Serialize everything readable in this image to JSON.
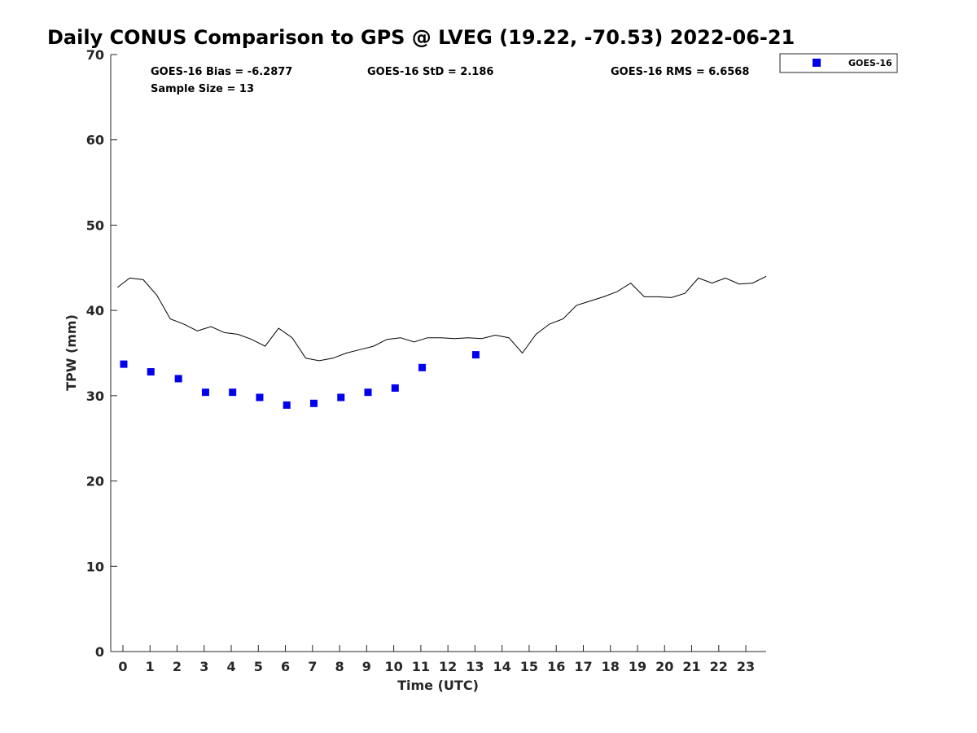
{
  "chart_data": {
    "type": "scatter",
    "title": "Daily CONUS Comparison to GPS @ LVEG (19.22, -70.53) 2022-06-21",
    "xlabel": "Time (UTC)",
    "ylabel": "TPW (mm)",
    "xlim": [
      -0.45,
      23.75
    ],
    "ylim": [
      0,
      70
    ],
    "x_ticks": [
      0,
      1,
      2,
      3,
      4,
      5,
      6,
      7,
      8,
      9,
      10,
      11,
      12,
      13,
      14,
      15,
      16,
      17,
      18,
      19,
      20,
      21,
      22,
      23
    ],
    "y_ticks": [
      0,
      10,
      20,
      30,
      40,
      50,
      60,
      70
    ],
    "grid": false,
    "legend_position": "outside-top-right",
    "stats": {
      "bias": "GOES-16 Bias = -6.2877",
      "std": "GOES-16 StD = 2.186",
      "rms": "GOES-16 RMS = 6.6568",
      "sample_size": "Sample Size = 13"
    },
    "series": [
      {
        "name": "GOES-16",
        "kind": "scatter",
        "marker": "square",
        "color": "#0000ee",
        "x": [
          0.03,
          1.03,
          2.05,
          3.05,
          4.05,
          5.05,
          6.05,
          7.05,
          8.05,
          9.05,
          10.05,
          11.05,
          13.03
        ],
        "y": [
          33.7,
          32.8,
          32.0,
          30.4,
          30.4,
          29.8,
          28.9,
          29.1,
          29.8,
          30.4,
          30.9,
          33.3,
          34.8
        ]
      },
      {
        "kind": "line",
        "color": "#000000",
        "x": [
          -0.2,
          0.25,
          0.75,
          1.25,
          1.75,
          2.25,
          2.75,
          3.25,
          3.75,
          4.25,
          4.75,
          5.25,
          5.75,
          6.25,
          6.75,
          7.25,
          7.75,
          8.25,
          8.75,
          9.25,
          9.75,
          10.25,
          10.75,
          11.25,
          11.75,
          12.25,
          12.75,
          13.25,
          13.75,
          14.25,
          14.75,
          15.25,
          15.75,
          16.25,
          16.75,
          17.25,
          17.75,
          18.25,
          18.75,
          19.25,
          19.75,
          20.25,
          20.75,
          21.25,
          21.75,
          22.25,
          22.75,
          23.25,
          23.75
        ],
        "y": [
          42.7,
          43.8,
          43.6,
          41.8,
          39.0,
          38.4,
          37.6,
          38.1,
          37.4,
          37.2,
          36.6,
          35.8,
          37.9,
          36.8,
          34.4,
          34.1,
          34.4,
          35.0,
          35.4,
          35.8,
          36.6,
          36.8,
          36.3,
          36.8,
          36.8,
          36.7,
          36.8,
          36.7,
          37.1,
          36.8,
          35.0,
          37.2,
          38.4,
          39.0,
          40.6,
          41.1,
          41.6,
          42.2,
          43.2,
          41.6,
          41.6,
          41.5,
          42.0,
          43.8,
          43.2,
          43.8,
          43.1,
          43.2,
          44.0
        ]
      }
    ]
  }
}
